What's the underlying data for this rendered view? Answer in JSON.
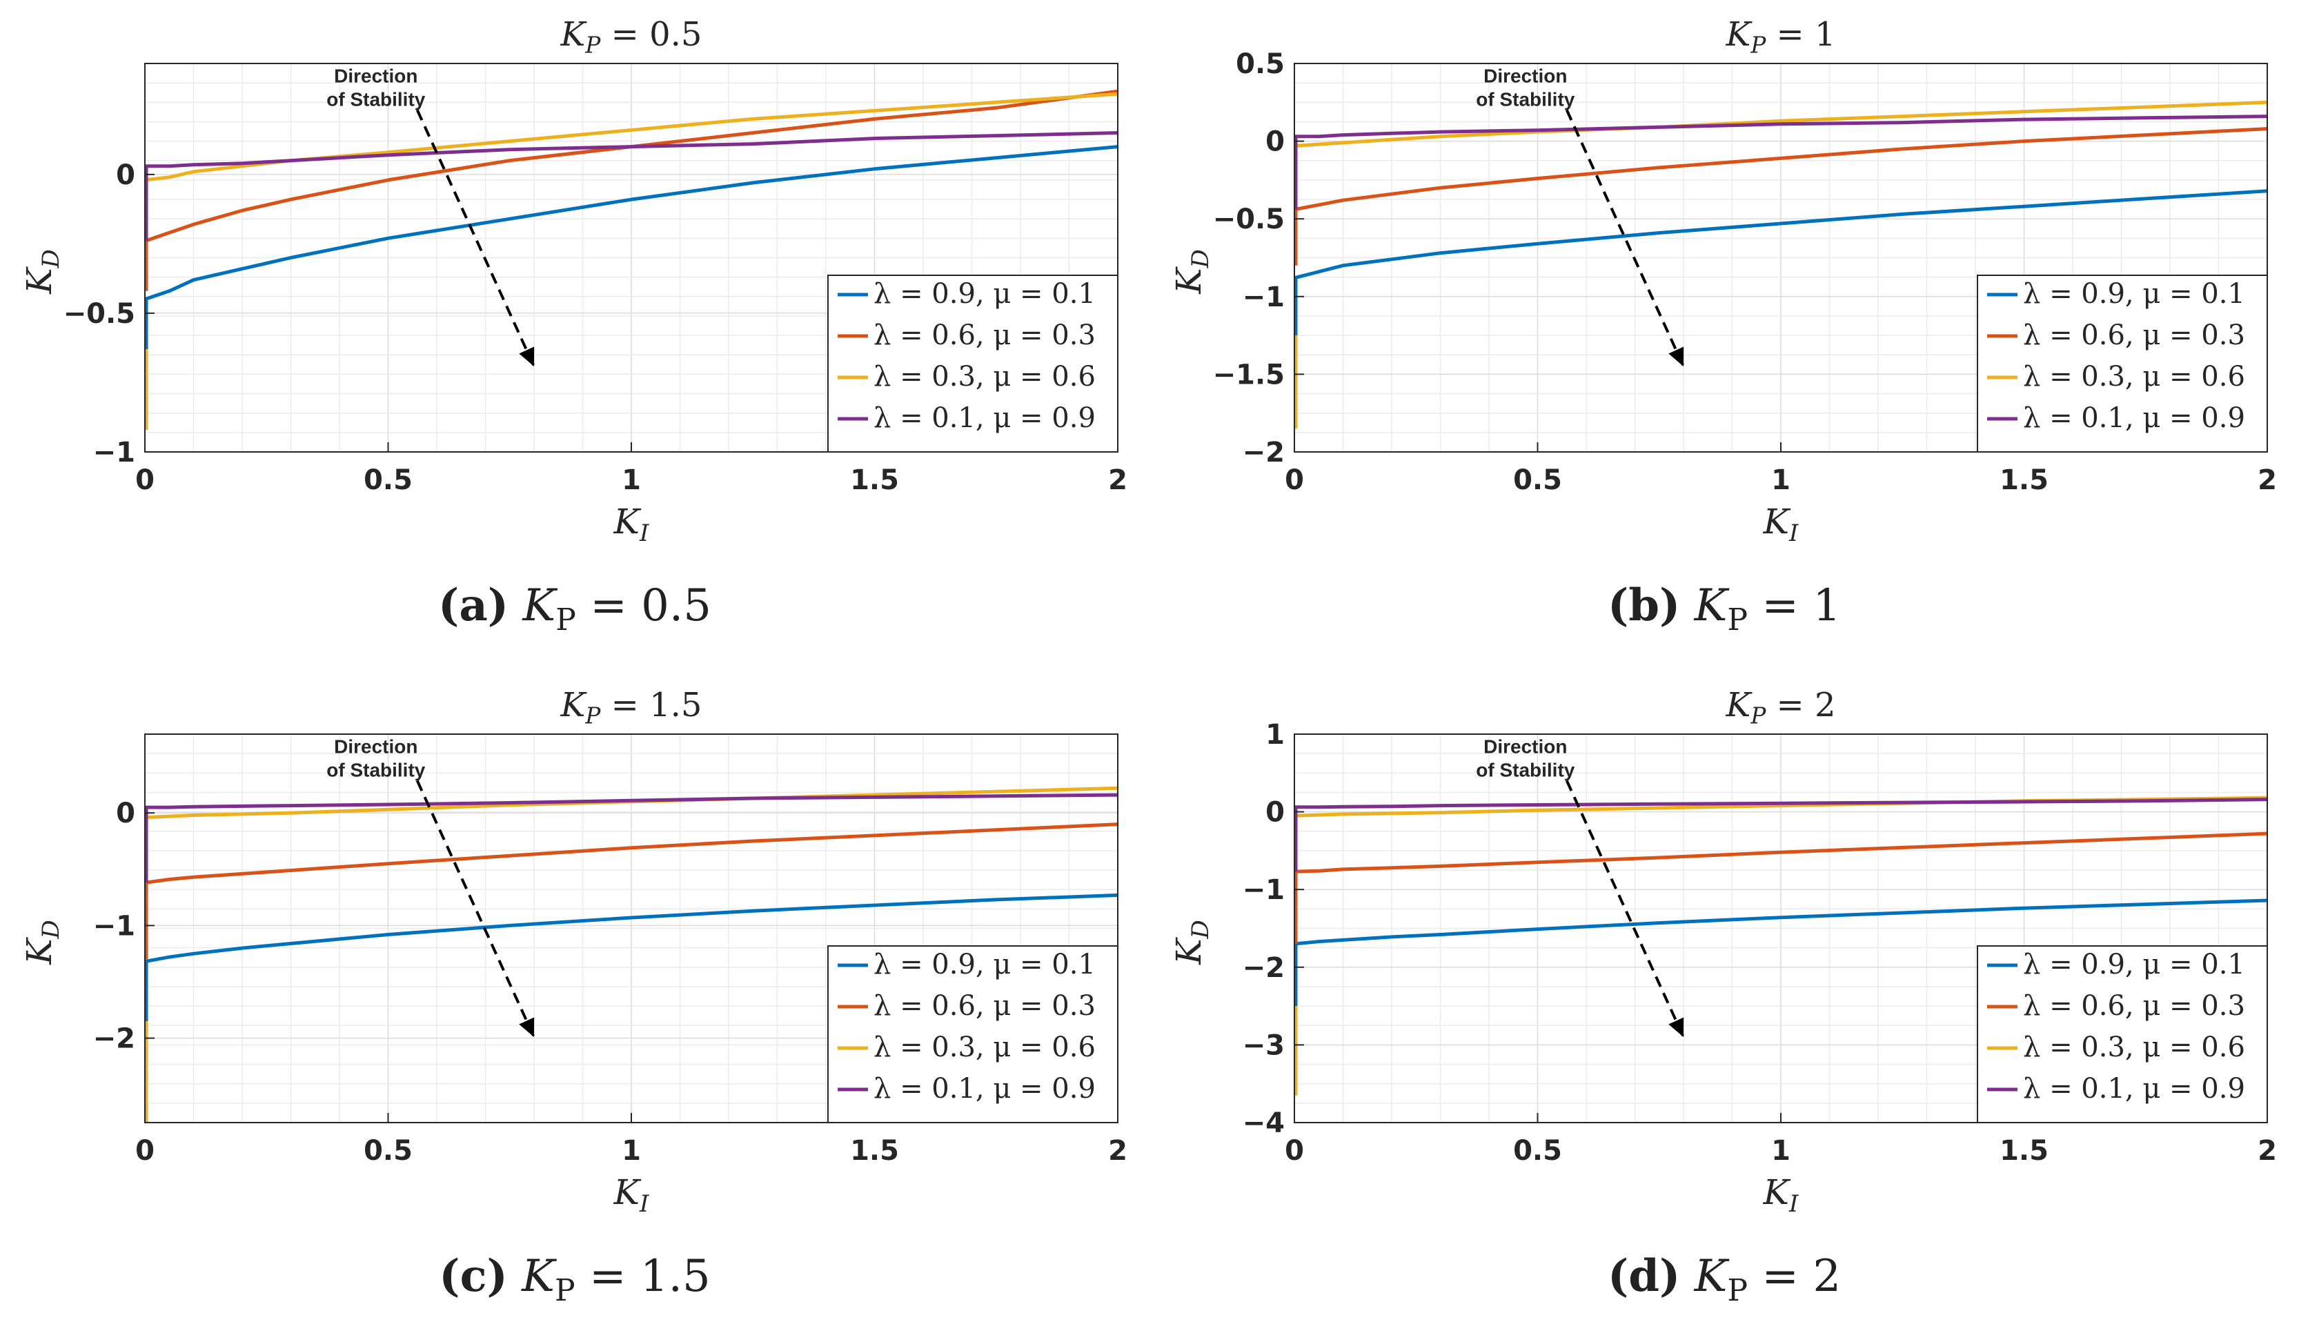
{
  "charts": [
    {
      "chart_data": {
        "type": "line",
        "title": "K_P = 0.5",
        "xlabel": "K_I",
        "ylabel": "K_D",
        "xlim": [
          0,
          2
        ],
        "ylim": [
          -1,
          0.4
        ],
        "xticks": [
          0,
          0.5,
          1,
          1.5,
          2
        ],
        "xtick_labels": [
          "0",
          "0.5",
          "1",
          "1.5",
          "2"
        ],
        "yticks": [
          -1,
          -0.5,
          0
        ],
        "ytick_labels": [
          "−1",
          "−0.5",
          "0"
        ],
        "grid": true,
        "legend_position": "lower-right",
        "annotation": {
          "line1": "Direction",
          "line2": "of Stability"
        },
        "series": [
          {
            "name": "λ = 0.9, μ = 0.1",
            "x": [
              0,
              0.05,
              0.1,
              0.2,
              0.3,
              0.5,
              0.75,
              1,
              1.25,
              1.5,
              1.75,
              2
            ],
            "y": [
              -0.45,
              -0.42,
              -0.38,
              -0.34,
              -0.3,
              -0.23,
              -0.16,
              -0.09,
              -0.03,
              0.02,
              0.06,
              0.1
            ],
            "vertical": [
              -0.63,
              -0.45
            ]
          },
          {
            "name": "λ = 0.6, μ = 0.3",
            "x": [
              0,
              0.05,
              0.1,
              0.2,
              0.3,
              0.5,
              0.75,
              1,
              1.25,
              1.5,
              1.75,
              2
            ],
            "y": [
              -0.24,
              -0.21,
              -0.18,
              -0.13,
              -0.09,
              -0.02,
              0.05,
              0.1,
              0.15,
              0.2,
              0.24,
              0.3
            ],
            "vertical": [
              -0.42,
              -0.24
            ]
          },
          {
            "name": "λ = 0.3, μ = 0.6",
            "x": [
              0,
              0.05,
              0.1,
              0.2,
              0.3,
              0.5,
              0.75,
              1,
              1.25,
              1.5,
              1.75,
              2
            ],
            "y": [
              -0.02,
              -0.01,
              0.01,
              0.03,
              0.05,
              0.08,
              0.12,
              0.16,
              0.2,
              0.23,
              0.26,
              0.29
            ],
            "vertical": [
              -0.92,
              -0.63
            ]
          },
          {
            "name": "λ = 0.1, μ = 0.9",
            "x": [
              0,
              0.05,
              0.1,
              0.2,
              0.3,
              0.5,
              0.75,
              1,
              1.25,
              1.5,
              1.75,
              2
            ],
            "y": [
              0.03,
              0.03,
              0.035,
              0.04,
              0.05,
              0.07,
              0.09,
              0.1,
              0.11,
              0.13,
              0.14,
              0.15
            ],
            "vertical": [
              -0.24,
              0.03
            ]
          }
        ]
      },
      "caption": {
        "letter": "(a)",
        "label": "K",
        "sub": "P",
        "value": " = 0.5"
      }
    },
    {
      "chart_data": {
        "type": "line",
        "title": "K_P = 1",
        "xlabel": "K_I",
        "ylabel": "K_D",
        "xlim": [
          0,
          2
        ],
        "ylim": [
          -2,
          0.5
        ],
        "xticks": [
          0,
          0.5,
          1,
          1.5,
          2
        ],
        "xtick_labels": [
          "0",
          "0.5",
          "1",
          "1.5",
          "2"
        ],
        "yticks": [
          -2,
          -1.5,
          -1,
          -0.5,
          0,
          0.5
        ],
        "ytick_labels": [
          "−2",
          "−1.5",
          "−1",
          "−0.5",
          "0",
          "0.5"
        ],
        "grid": true,
        "legend_position": "lower-right",
        "annotation": {
          "line1": "Direction",
          "line2": "of Stability"
        },
        "series": [
          {
            "name": "λ = 0.9, μ = 0.1",
            "x": [
              0,
              0.05,
              0.1,
              0.2,
              0.3,
              0.5,
              0.75,
              1,
              1.25,
              1.5,
              1.75,
              2
            ],
            "y": [
              -0.88,
              -0.84,
              -0.8,
              -0.76,
              -0.72,
              -0.66,
              -0.59,
              -0.53,
              -0.47,
              -0.42,
              -0.37,
              -0.32
            ],
            "vertical": [
              -1.25,
              -0.88
            ]
          },
          {
            "name": "λ = 0.6, μ = 0.3",
            "x": [
              0,
              0.05,
              0.1,
              0.2,
              0.3,
              0.5,
              0.75,
              1,
              1.25,
              1.5,
              1.75,
              2
            ],
            "y": [
              -0.44,
              -0.41,
              -0.38,
              -0.34,
              -0.3,
              -0.24,
              -0.17,
              -0.11,
              -0.05,
              0,
              0.04,
              0.08
            ],
            "vertical": [
              -0.8,
              -0.44
            ]
          },
          {
            "name": "λ = 0.3, μ = 0.6",
            "x": [
              0,
              0.05,
              0.1,
              0.2,
              0.3,
              0.5,
              0.75,
              1,
              1.25,
              1.5,
              1.75,
              2
            ],
            "y": [
              -0.03,
              -0.02,
              -0.01,
              0.01,
              0.03,
              0.06,
              0.09,
              0.13,
              0.16,
              0.19,
              0.22,
              0.25
            ],
            "vertical": [
              -1.85,
              -1.25
            ]
          },
          {
            "name": "λ = 0.1, μ = 0.9",
            "x": [
              0,
              0.05,
              0.1,
              0.2,
              0.3,
              0.5,
              0.75,
              1,
              1.25,
              1.5,
              1.75,
              2
            ],
            "y": [
              0.03,
              0.03,
              0.04,
              0.05,
              0.06,
              0.07,
              0.09,
              0.11,
              0.12,
              0.14,
              0.15,
              0.16
            ],
            "vertical": [
              -0.44,
              0.03
            ]
          }
        ]
      },
      "caption": {
        "letter": "(b)",
        "label": "K",
        "sub": "P",
        "value": " = 1"
      }
    },
    {
      "chart_data": {
        "type": "line",
        "title": "K_P = 1.5",
        "xlabel": "K_I",
        "ylabel": "K_D",
        "xlim": [
          0,
          2
        ],
        "ylim": [
          -2.75,
          0.7
        ],
        "xticks": [
          0,
          0.5,
          1,
          1.5,
          2
        ],
        "xtick_labels": [
          "0",
          "0.5",
          "1",
          "1.5",
          "2"
        ],
        "yticks": [
          -2,
          -1,
          0
        ],
        "ytick_labels": [
          "−2",
          "−1",
          "0"
        ],
        "grid": true,
        "legend_position": "lower-right",
        "annotation": {
          "line1": "Direction",
          "line2": "of Stability"
        },
        "series": [
          {
            "name": "λ = 0.9, μ = 0.1",
            "x": [
              0,
              0.05,
              0.1,
              0.2,
              0.3,
              0.5,
              0.75,
              1,
              1.25,
              1.5,
              1.75,
              2
            ],
            "y": [
              -1.32,
              -1.28,
              -1.25,
              -1.2,
              -1.16,
              -1.08,
              -1.0,
              -0.93,
              -0.87,
              -0.82,
              -0.77,
              -0.73
            ],
            "vertical": [
              -1.85,
              -1.32
            ]
          },
          {
            "name": "λ = 0.6, μ = 0.3",
            "x": [
              0,
              0.05,
              0.1,
              0.2,
              0.3,
              0.5,
              0.75,
              1,
              1.25,
              1.5,
              1.75,
              2
            ],
            "y": [
              -0.62,
              -0.59,
              -0.57,
              -0.54,
              -0.51,
              -0.45,
              -0.38,
              -0.31,
              -0.25,
              -0.2,
              -0.15,
              -0.1
            ],
            "vertical": [
              -1.3,
              -0.62
            ]
          },
          {
            "name": "λ = 0.3, μ = 0.6",
            "x": [
              0,
              0.05,
              0.1,
              0.2,
              0.3,
              0.5,
              0.75,
              1,
              1.25,
              1.5,
              1.75,
              2
            ],
            "y": [
              -0.04,
              -0.03,
              -0.02,
              -0.01,
              0.0,
              0.03,
              0.07,
              0.1,
              0.13,
              0.16,
              0.19,
              0.22
            ],
            "vertical": [
              -2.75,
              -1.85
            ]
          },
          {
            "name": "λ = 0.1, μ = 0.9",
            "x": [
              0,
              0.05,
              0.1,
              0.2,
              0.3,
              0.5,
              0.75,
              1,
              1.25,
              1.5,
              1.75,
              2
            ],
            "y": [
              0.05,
              0.05,
              0.055,
              0.06,
              0.065,
              0.075,
              0.09,
              0.11,
              0.13,
              0.14,
              0.15,
              0.16
            ],
            "vertical": [
              -0.62,
              0.05
            ]
          }
        ]
      },
      "caption": {
        "letter": "(c)",
        "label": "K",
        "sub": "P",
        "value": " = 1.5"
      }
    },
    {
      "chart_data": {
        "type": "line",
        "title": "K_P = 2",
        "xlabel": "K_I",
        "ylabel": "K_D",
        "xlim": [
          0,
          2
        ],
        "ylim": [
          -4,
          1
        ],
        "xticks": [
          0,
          0.5,
          1,
          1.5,
          2
        ],
        "xtick_labels": [
          "0",
          "0.5",
          "1",
          "1.5",
          "2"
        ],
        "yticks": [
          -4,
          -3,
          -2,
          -1,
          0,
          1
        ],
        "ytick_labels": [
          "−4",
          "−3",
          "−2",
          "−1",
          "0",
          "1"
        ],
        "grid": true,
        "legend_position": "lower-right",
        "annotation": {
          "line1": "Direction",
          "line2": "of Stability"
        },
        "series": [
          {
            "name": "λ = 0.9, μ = 0.1",
            "x": [
              0,
              0.05,
              0.1,
              0.2,
              0.3,
              0.5,
              0.75,
              1,
              1.25,
              1.5,
              1.75,
              2
            ],
            "y": [
              -1.7,
              -1.67,
              -1.65,
              -1.61,
              -1.58,
              -1.51,
              -1.43,
              -1.36,
              -1.3,
              -1.24,
              -1.19,
              -1.14
            ],
            "vertical": [
              -2.5,
              -1.7
            ]
          },
          {
            "name": "λ = 0.6, μ = 0.3",
            "x": [
              0,
              0.05,
              0.1,
              0.2,
              0.3,
              0.5,
              0.75,
              1,
              1.25,
              1.5,
              1.75,
              2
            ],
            "y": [
              -0.77,
              -0.76,
              -0.74,
              -0.72,
              -0.7,
              -0.65,
              -0.59,
              -0.52,
              -0.46,
              -0.4,
              -0.34,
              -0.28
            ],
            "vertical": [
              -1.7,
              -0.77
            ]
          },
          {
            "name": "λ = 0.3, μ = 0.6",
            "x": [
              0,
              0.05,
              0.1,
              0.2,
              0.3,
              0.5,
              0.75,
              1,
              1.25,
              1.5,
              1.75,
              2
            ],
            "y": [
              -0.05,
              -0.04,
              -0.03,
              -0.02,
              -0.01,
              0.02,
              0.05,
              0.08,
              0.11,
              0.14,
              0.16,
              0.18
            ],
            "vertical": [
              -3.65,
              -2.5
            ]
          },
          {
            "name": "λ = 0.1, μ = 0.9",
            "x": [
              0,
              0.05,
              0.1,
              0.2,
              0.3,
              0.5,
              0.75,
              1,
              1.25,
              1.5,
              1.75,
              2
            ],
            "y": [
              0.06,
              0.06,
              0.065,
              0.07,
              0.08,
              0.09,
              0.1,
              0.11,
              0.12,
              0.13,
              0.14,
              0.16
            ],
            "vertical": [
              -0.77,
              0.06
            ]
          }
        ]
      },
      "caption": {
        "letter": "(d)",
        "label": "K",
        "sub": "P",
        "value": " = 2"
      }
    }
  ],
  "colors": {
    "s0": "#0072BD",
    "s1": "#D95319",
    "s2": "#EDB120",
    "s3": "#7E2F8E",
    "grid": "#ebebeb",
    "axis": "#262626"
  }
}
